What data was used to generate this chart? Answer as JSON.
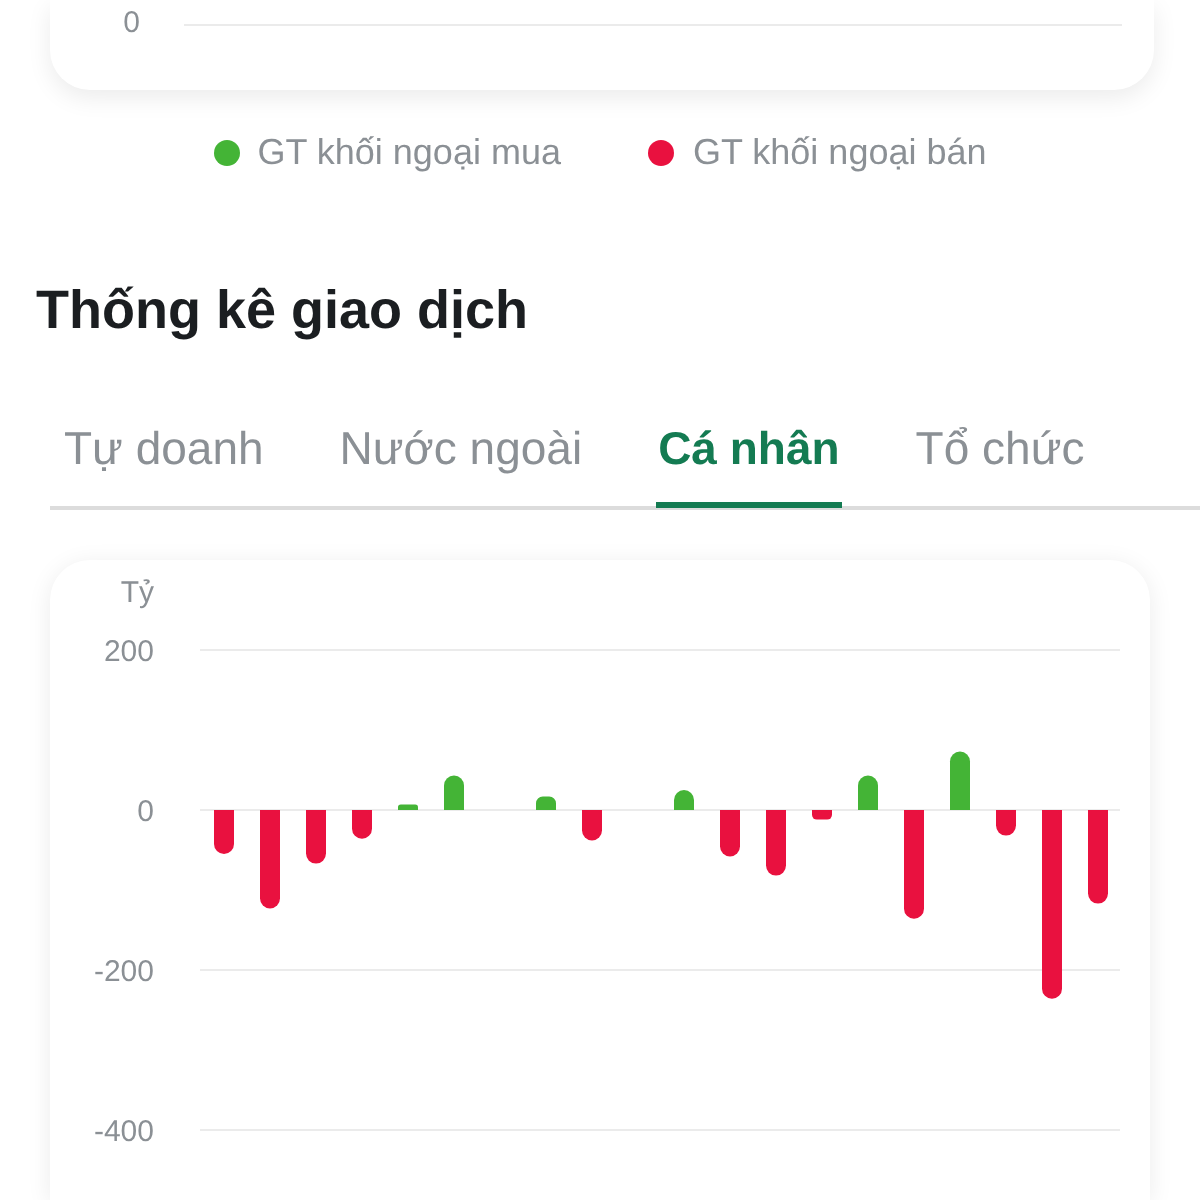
{
  "chart_data": [
    {
      "type": "other",
      "annotations": [
        "0"
      ],
      "series": [
        {
          "name": "GT khối ngoại mua",
          "color": "#44b436"
        },
        {
          "name": "GT khối ngoại bán",
          "color": "#e9113f"
        }
      ],
      "legend": "bottom"
    },
    {
      "type": "bar",
      "title": "Thống kê giao dịch",
      "annotations": [
        "Tự doanh",
        "Nước ngoài",
        "Cá nhân",
        "Tổ chức"
      ],
      "ylabel": "Tỷ",
      "categories": [
        null,
        null,
        null,
        null,
        null,
        null,
        null,
        null,
        null,
        null,
        null,
        null,
        null,
        null,
        null,
        null,
        null,
        null,
        null,
        null
      ],
      "values": [
        -55,
        -123,
        -67,
        -36,
        7,
        43,
        null,
        17,
        -38,
        null,
        25,
        -58,
        -82,
        -12,
        43,
        -136,
        73,
        -32,
        -236,
        -117
      ],
      "colors": [
        "#e9113f",
        "#e9113f",
        "#e9113f",
        "#e9113f",
        "#44b436",
        "#44b436",
        null,
        "#44b436",
        "#e9113f",
        null,
        "#44b436",
        "#e9113f",
        "#e9113f",
        "#e9113f",
        "#44b436",
        "#e9113f",
        "#44b436",
        "#e9113f",
        "#e9113f",
        "#e9113f"
      ],
      "ylim": [
        -400,
        200
      ],
      "yticks": [
        -400,
        -200,
        0,
        200
      ],
      "grid": "y"
    }
  ]
}
